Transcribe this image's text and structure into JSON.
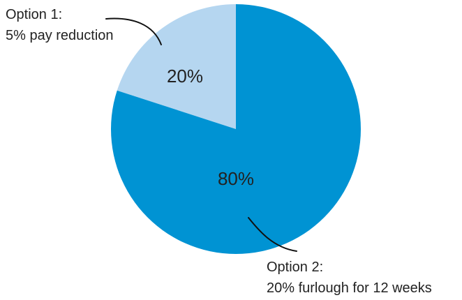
{
  "chart_data": {
    "type": "pie",
    "title": "",
    "slices": [
      {
        "label_lines": [
          "Option 1:",
          "5% pay reduction"
        ],
        "value": 20,
        "value_label": "20%",
        "color": "#b5d6f0"
      },
      {
        "label_lines": [
          "Option 2:",
          "20% furlough for 12 weeks"
        ],
        "value": 80,
        "value_label": "80%",
        "color": "#0093d3"
      }
    ],
    "start_angle_deg": 0,
    "direction": "counterclockwise",
    "leader_line_color": "#111111"
  }
}
